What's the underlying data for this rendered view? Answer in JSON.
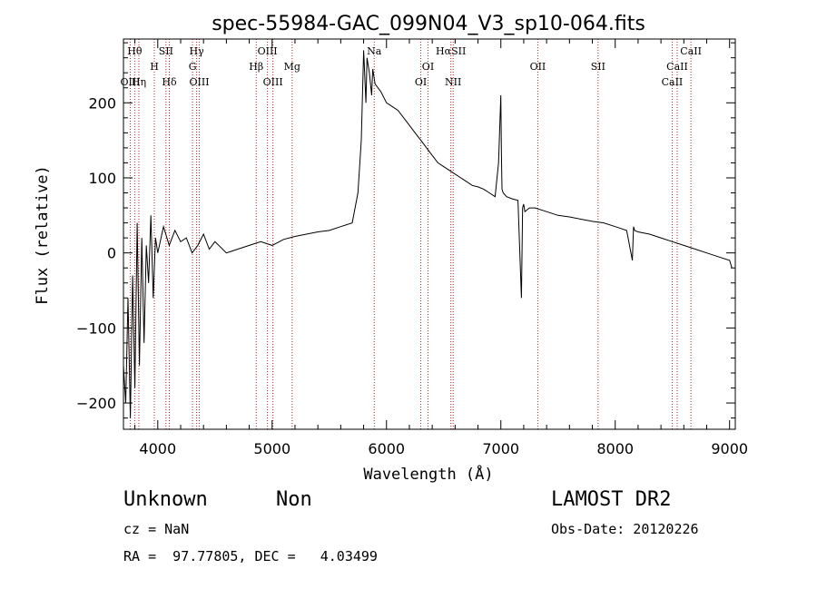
{
  "chart_data": {
    "type": "line",
    "title": "spec-55984-GAC_099N04_V3_sp10-064.fits",
    "xlabel": "Wavelength (Å)",
    "ylabel": "Flux (relative)",
    "xlim": [
      3700,
      9050
    ],
    "ylim": [
      -235,
      285
    ],
    "xticks": [
      4000,
      5000,
      6000,
      7000,
      8000,
      9000
    ],
    "yticks": [
      -200,
      -100,
      0,
      100,
      200
    ],
    "grid": false,
    "series": [
      {
        "x": [
          3700,
          3720,
          3740,
          3760,
          3780,
          3800,
          3820,
          3840,
          3860,
          3880,
          3900,
          3920,
          3940,
          3960,
          3980,
          4000,
          4050,
          4100,
          4150,
          4200,
          4250,
          4300,
          4350,
          4400,
          4450,
          4500,
          4600,
          4700,
          4800,
          4900,
          5000,
          5100,
          5200,
          5300,
          5400,
          5500,
          5600,
          5700,
          5750,
          5780,
          5800,
          5820,
          5830,
          5850,
          5870,
          5880,
          5900,
          5950,
          6000,
          6050,
          6100,
          6150,
          6200,
          6250,
          6300,
          6350,
          6400,
          6450,
          6500,
          6550,
          6600,
          6650,
          6700,
          6750,
          6800,
          6850,
          6900,
          6950,
          6980,
          7000,
          7005,
          7010,
          7020,
          7050,
          7100,
          7150,
          7180,
          7190,
          7200,
          7210,
          7250,
          7300,
          7400,
          7500,
          7600,
          7700,
          7800,
          7900,
          8000,
          8100,
          8150,
          8160,
          8170,
          8200,
          8300,
          8400,
          8500,
          8600,
          8700,
          8800,
          8900,
          9000,
          9010,
          9020
        ],
        "y": [
          -150,
          -200,
          -60,
          -220,
          -30,
          -180,
          40,
          -150,
          20,
          -120,
          10,
          -40,
          50,
          -60,
          20,
          0,
          35,
          10,
          30,
          15,
          20,
          0,
          10,
          25,
          5,
          15,
          0,
          5,
          10,
          15,
          10,
          18,
          22,
          25,
          28,
          30,
          35,
          40,
          80,
          150,
          270,
          200,
          260,
          240,
          210,
          245,
          225,
          215,
          200,
          195,
          190,
          180,
          170,
          160,
          150,
          140,
          130,
          120,
          115,
          110,
          105,
          100,
          95,
          90,
          88,
          85,
          80,
          75,
          120,
          210,
          130,
          85,
          80,
          75,
          72,
          70,
          -60,
          60,
          65,
          55,
          60,
          60,
          55,
          50,
          48,
          45,
          42,
          40,
          35,
          30,
          -10,
          35,
          30,
          28,
          25,
          20,
          15,
          10,
          5,
          0,
          -5,
          -10,
          -15,
          -20
        ]
      }
    ],
    "lines": [
      {
        "name": "Hθ",
        "wavelength": 3798,
        "row": 0
      },
      {
        "name": "SII",
        "wavelength": 4072,
        "row": 0
      },
      {
        "name": "Hγ",
        "wavelength": 4340,
        "row": 0
      },
      {
        "name": "OIII",
        "wavelength": 4959,
        "row": 0
      },
      {
        "name": "Na",
        "wavelength": 5893,
        "row": 0
      },
      {
        "name": "HαSII",
        "wavelength": 6563,
        "row": 0
      },
      {
        "name": "CaII",
        "wavelength": 8662,
        "row": 0
      },
      {
        "name": "H",
        "wavelength": 3970,
        "row": 1
      },
      {
        "name": "G",
        "wavelength": 4304,
        "row": 1
      },
      {
        "name": "Hβ",
        "wavelength": 4861,
        "row": 1
      },
      {
        "name": "Mg",
        "wavelength": 5175,
        "row": 1
      },
      {
        "name": "OI",
        "wavelength": 6363,
        "row": 1
      },
      {
        "name": "OII",
        "wavelength": 7323,
        "row": 1
      },
      {
        "name": "SII",
        "wavelength": 7850,
        "row": 1
      },
      {
        "name": "CaII",
        "wavelength": 8542,
        "row": 1
      },
      {
        "name": "OIII",
        "wavelength": 3760,
        "row": 2
      },
      {
        "name": "Hη",
        "wavelength": 3835,
        "row": 2
      },
      {
        "name": "Hδ",
        "wavelength": 4101,
        "row": 2
      },
      {
        "name": "OIII",
        "wavelength": 4363,
        "row": 2
      },
      {
        "name": "OIII",
        "wavelength": 5007,
        "row": 2
      },
      {
        "name": "OI",
        "wavelength": 6300,
        "row": 2
      },
      {
        "name": "NII",
        "wavelength": 6583,
        "row": 2
      },
      {
        "name": "CaII",
        "wavelength": 8498,
        "row": 2
      }
    ]
  },
  "info": {
    "object_class": "Unknown",
    "subclass": "Non",
    "survey": "LAMOST DR2",
    "redshift": "cz = NaN",
    "obs_date": "Obs-Date: 20120226",
    "coords": "RA =  97.77805, DEC =   4.03499"
  }
}
